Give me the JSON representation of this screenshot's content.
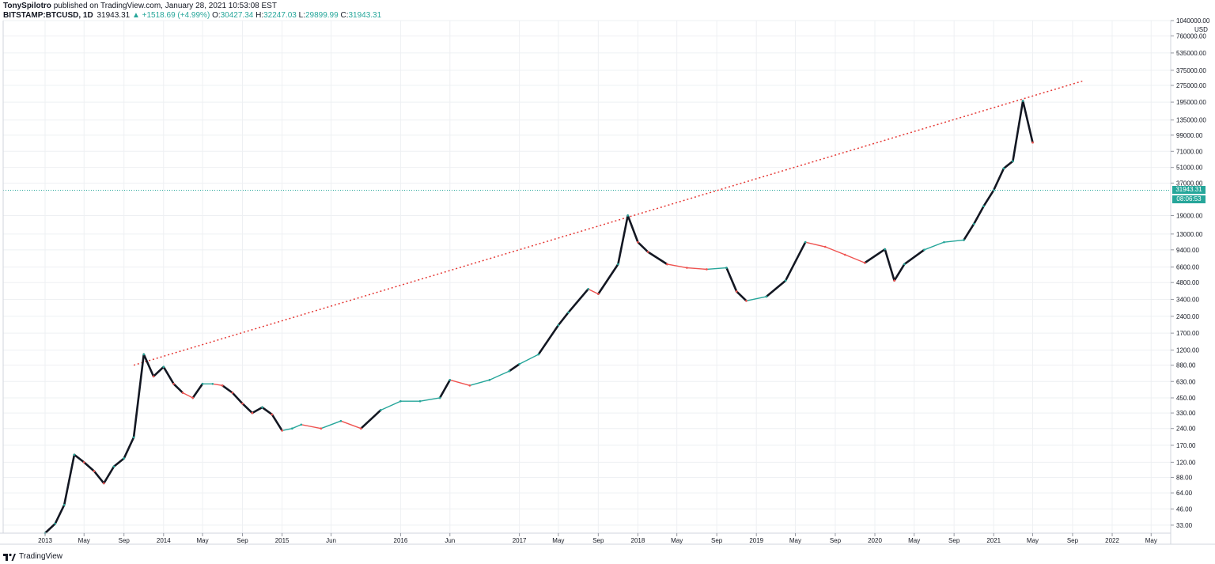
{
  "header": {
    "author": "TonySpilotro",
    "published": "published on TradingView.com, January 28, 2021 10:53:08 EST",
    "symbol": "BITSTAMP:BTCUSD, 1D",
    "last": "31943.31",
    "change": "▲ +1518.69 (+4.99%)",
    "o_label": "O:",
    "o_value": "30427.34",
    "h_label": "H:",
    "h_value": "32247.03",
    "l_label": "L:",
    "l_value": "29899.99",
    "c_label": "C:",
    "c_value": "31943.31"
  },
  "price_axis": {
    "unit": "USD",
    "current_price_badge": "31943.31",
    "countdown_badge": "08:06:53"
  },
  "brand": {
    "name": "TradingView",
    "icon": "tradingview-logo-icon"
  },
  "colors": {
    "up": "#26a69a",
    "down": "#ef5350",
    "trendline": "#e53935",
    "grid": "#eef0f3",
    "price_line": "#26a69a"
  },
  "chart_data": {
    "type": "line",
    "title": "",
    "xlabel": "",
    "ylabel": "",
    "y_scale": "log",
    "ylim": [
      28,
      1040000
    ],
    "grid": true,
    "x_ticks": [
      "2013",
      "May",
      "Sep",
      "2014",
      "May",
      "Sep",
      "2015",
      "Jun",
      "2016",
      "Jun",
      "2017",
      "May",
      "Sep",
      "2018",
      "May",
      "Sep",
      "2019",
      "May",
      "Sep",
      "2020",
      "May",
      "Sep",
      "2021",
      "May",
      "Sep",
      "2022",
      "May"
    ],
    "y_ticks": [
      1040000,
      760000,
      535000,
      375000,
      275000,
      195000,
      135000,
      99000,
      71000,
      51000,
      37000,
      19000,
      13000,
      9400,
      6600,
      4800,
      3400,
      2400,
      1700,
      1200,
      880,
      630,
      450,
      330,
      240,
      170,
      120,
      88,
      64,
      46,
      33
    ],
    "y_tick_labels": [
      "1040000.00",
      "760000.00",
      "535000.00",
      "375000.00",
      "275000.00",
      "195000.00",
      "135000.00",
      "99000.00",
      "71000.00",
      "51000.00",
      "37000.00",
      "19000.00",
      "13000.00",
      "9400.00",
      "6600.00",
      "4800.00",
      "3400.00",
      "2400.00",
      "1700.00",
      "1200.00",
      "880.00",
      "630.00",
      "450.00",
      "330.00",
      "240.00",
      "170.00",
      "120.00",
      "88.00",
      "64.00",
      "46.00",
      "33.00"
    ],
    "series": [
      {
        "x": [
          "2013-01",
          "2013-02",
          "2013-03",
          "2013-04",
          "2013-05",
          "2013-06",
          "2013-07",
          "2013-08",
          "2013-09",
          "2013-10",
          "2013-11",
          "2013-12",
          "2014-01",
          "2014-02",
          "2014-03",
          "2014-04",
          "2014-05",
          "2014-06",
          "2014-07",
          "2014-08",
          "2014-09",
          "2014-10",
          "2014-11",
          "2014-12",
          "2015-01",
          "2015-02",
          "2015-03",
          "2015-05",
          "2015-07",
          "2015-09",
          "2015-11",
          "2016-01",
          "2016-03",
          "2016-05",
          "2016-06",
          "2016-08",
          "2016-10",
          "2016-12",
          "2017-01",
          "2017-03",
          "2017-05",
          "2017-06",
          "2017-08",
          "2017-09",
          "2017-11",
          "2017-12",
          "2018-01",
          "2018-02",
          "2018-04",
          "2018-06",
          "2018-08",
          "2018-10",
          "2018-11",
          "2018-12",
          "2019-02",
          "2019-04",
          "2019-06",
          "2019-08",
          "2019-10",
          "2019-12",
          "2020-02",
          "2020-03",
          "2020-04",
          "2020-06",
          "2020-08",
          "2020-10",
          "2020-11",
          "2020-12",
          "2021-01",
          "2021-02",
          "2021-03",
          "2021-04",
          "2021-05"
        ],
        "values": [
          28,
          34,
          50,
          140,
          120,
          100,
          78,
          110,
          130,
          200,
          1100,
          700,
          850,
          600,
          500,
          450,
          600,
          600,
          580,
          500,
          400,
          330,
          370,
          320,
          230,
          240,
          260,
          240,
          280,
          240,
          350,
          420,
          420,
          450,
          650,
          580,
          650,
          780,
          900,
          1100,
          2000,
          2600,
          4200,
          3800,
          7000,
          19000,
          11000,
          9000,
          7000,
          6500,
          6300,
          6500,
          4000,
          3300,
          3600,
          5000,
          11000,
          10000,
          8500,
          7200,
          9500,
          5000,
          7000,
          9400,
          11000,
          11500,
          16000,
          23000,
          32000,
          50000,
          58000,
          200000,
          85000
        ]
      }
    ],
    "trendline": {
      "style": "dotted",
      "from": [
        "2013-10",
        880
      ],
      "to": [
        "2021-10",
        300000
      ]
    },
    "current_price": 31943.31,
    "annotations": []
  }
}
